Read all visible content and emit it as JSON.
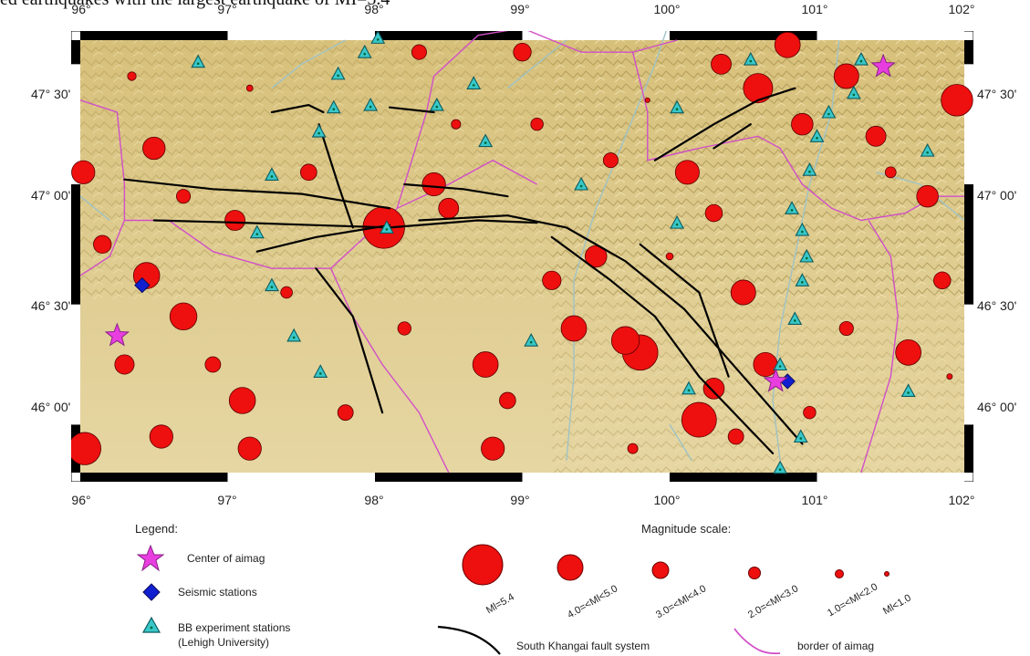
{
  "top_note": "ed earthquakes with the largest earthquake of MI=5.4",
  "map": {
    "lon_ticks": [
      "96°",
      "97°",
      "98°",
      "99°",
      "100°",
      "101°",
      "102°"
    ],
    "lat_ticks": [
      "47° 30'",
      "47° 00'",
      "46° 30'",
      "46° 00'"
    ],
    "lon_range": [
      96,
      102
    ],
    "lat_range": [
      45.8,
      47.6
    ],
    "colors": {
      "terrain": "#d9c483",
      "earthquake": "#ee0f0f",
      "fault": "#000000",
      "aimag_border": "#d14fc8",
      "river": "#9fc3c6",
      "station_bb": "#38c7c9",
      "station_seismic": "#1020d0",
      "aimag_center": "#e83ee0"
    },
    "aimag_centers": [
      {
        "lon": 96.25,
        "lat": 46.37
      },
      {
        "lon": 100.72,
        "lat": 46.18
      },
      {
        "lon": 101.45,
        "lat": 47.49
      }
    ],
    "seismic_stations": [
      {
        "lon": 96.42,
        "lat": 46.58
      },
      {
        "lon": 100.8,
        "lat": 46.18
      }
    ],
    "bb_stations": [
      {
        "lon": 96.8,
        "lat": 47.51
      },
      {
        "lon": 97.75,
        "lat": 47.46
      },
      {
        "lon": 97.93,
        "lat": 47.55
      },
      {
        "lon": 98.02,
        "lat": 47.61
      },
      {
        "lon": 97.72,
        "lat": 47.32
      },
      {
        "lon": 97.97,
        "lat": 47.33
      },
      {
        "lon": 97.62,
        "lat": 47.22
      },
      {
        "lon": 98.42,
        "lat": 47.33
      },
      {
        "lon": 98.67,
        "lat": 47.42
      },
      {
        "lon": 98.75,
        "lat": 47.18
      },
      {
        "lon": 99.15,
        "lat": 47.68
      },
      {
        "lon": 97.3,
        "lat": 47.04
      },
      {
        "lon": 97.2,
        "lat": 46.8
      },
      {
        "lon": 98.08,
        "lat": 46.82
      },
      {
        "lon": 97.3,
        "lat": 46.58
      },
      {
        "lon": 97.45,
        "lat": 46.37
      },
      {
        "lon": 97.63,
        "lat": 46.22
      },
      {
        "lon": 99.06,
        "lat": 46.35
      },
      {
        "lon": 99.4,
        "lat": 47.0
      },
      {
        "lon": 100.05,
        "lat": 47.32
      },
      {
        "lon": 100.05,
        "lat": 46.84
      },
      {
        "lon": 100.55,
        "lat": 47.52
      },
      {
        "lon": 100.13,
        "lat": 46.15
      },
      {
        "lon": 100.75,
        "lat": 46.25
      },
      {
        "lon": 100.85,
        "lat": 46.44
      },
      {
        "lon": 100.9,
        "lat": 46.6
      },
      {
        "lon": 100.93,
        "lat": 46.7
      },
      {
        "lon": 100.9,
        "lat": 46.81
      },
      {
        "lon": 100.83,
        "lat": 46.9
      },
      {
        "lon": 100.95,
        "lat": 47.06
      },
      {
        "lon": 101.0,
        "lat": 47.2
      },
      {
        "lon": 101.08,
        "lat": 47.3
      },
      {
        "lon": 101.25,
        "lat": 47.38
      },
      {
        "lon": 101.3,
        "lat": 47.52
      },
      {
        "lon": 101.62,
        "lat": 46.14
      },
      {
        "lon": 101.75,
        "lat": 47.14
      },
      {
        "lon": 100.89,
        "lat": 45.95
      },
      {
        "lon": 100.75,
        "lat": 45.82
      }
    ],
    "faults": [
      [
        [
          96.3,
          47.02
        ],
        [
          96.9,
          46.98
        ],
        [
          97.5,
          46.96
        ],
        [
          98.1,
          46.9
        ]
      ],
      [
        [
          96.5,
          46.85
        ],
        [
          97.1,
          46.84
        ],
        [
          97.6,
          46.83
        ],
        [
          98.1,
          46.82
        ],
        [
          98.7,
          46.85
        ],
        [
          99.1,
          46.84
        ]
      ],
      [
        [
          97.2,
          46.72
        ],
        [
          97.6,
          46.78
        ],
        [
          98.1,
          46.83
        ]
      ],
      [
        [
          98.3,
          46.85
        ],
        [
          98.9,
          46.87
        ],
        [
          99.3,
          46.82
        ],
        [
          99.7,
          46.68
        ],
        [
          100.1,
          46.48
        ],
        [
          100.5,
          46.2
        ],
        [
          100.9,
          45.92
        ]
      ],
      [
        [
          99.2,
          46.78
        ],
        [
          99.6,
          46.6
        ],
        [
          99.9,
          46.45
        ],
        [
          100.2,
          46.2
        ],
        [
          100.7,
          45.88
        ]
      ],
      [
        [
          99.8,
          46.75
        ],
        [
          100.2,
          46.55
        ],
        [
          100.4,
          46.2
        ]
      ],
      [
        [
          97.62,
          47.25
        ],
        [
          97.75,
          47.0
        ],
        [
          97.85,
          46.82
        ]
      ],
      [
        [
          97.6,
          46.65
        ],
        [
          97.85,
          46.45
        ],
        [
          98.05,
          46.05
        ]
      ],
      [
        [
          97.3,
          47.3
        ],
        [
          97.55,
          47.33
        ],
        [
          97.65,
          47.3
        ]
      ],
      [
        [
          98.1,
          47.32
        ],
        [
          98.4,
          47.3
        ]
      ],
      [
        [
          99.9,
          47.1
        ],
        [
          100.3,
          47.25
        ],
        [
          100.6,
          47.35
        ],
        [
          100.85,
          47.4
        ]
      ],
      [
        [
          100.3,
          47.15
        ],
        [
          100.55,
          47.25
        ]
      ],
      [
        [
          98.2,
          47.0
        ],
        [
          98.6,
          46.98
        ],
        [
          98.9,
          46.95
        ]
      ]
    ],
    "borders": [
      [
        [
          96.0,
          47.35
        ],
        [
          96.25,
          47.3
        ],
        [
          96.3,
          47.0
        ],
        [
          96.3,
          46.85
        ],
        [
          96.6,
          46.85
        ],
        [
          96.9,
          46.72
        ],
        [
          97.3,
          46.65
        ],
        [
          97.7,
          46.65
        ],
        [
          98.0,
          46.82
        ],
        [
          98.15,
          46.9
        ],
        [
          98.5,
          47.0
        ]
      ],
      [
        [
          96.3,
          46.85
        ],
        [
          96.2,
          46.7
        ],
        [
          96.0,
          46.62
        ]
      ],
      [
        [
          97.7,
          46.65
        ],
        [
          97.85,
          46.45
        ],
        [
          98.05,
          46.25
        ],
        [
          98.3,
          46.05
        ],
        [
          98.5,
          45.8
        ]
      ],
      [
        [
          98.15,
          46.9
        ],
        [
          98.25,
          47.1
        ],
        [
          98.35,
          47.3
        ],
        [
          98.4,
          47.45
        ],
        [
          98.7,
          47.62
        ],
        [
          99.0,
          47.65
        ],
        [
          99.4,
          47.55
        ],
        [
          99.75,
          47.55
        ],
        [
          100.05,
          47.6
        ]
      ],
      [
        [
          99.75,
          47.55
        ],
        [
          99.85,
          47.3
        ],
        [
          99.85,
          47.1
        ],
        [
          100.2,
          47.15
        ],
        [
          100.6,
          47.2
        ],
        [
          100.75,
          47.15
        ],
        [
          100.9,
          47.0
        ],
        [
          101.1,
          46.9
        ],
        [
          101.3,
          46.85
        ],
        [
          101.6,
          46.88
        ],
        [
          101.8,
          46.95
        ],
        [
          102.0,
          46.95
        ]
      ],
      [
        [
          101.35,
          46.85
        ],
        [
          101.5,
          46.7
        ],
        [
          101.55,
          46.45
        ],
        [
          101.5,
          46.2
        ],
        [
          101.4,
          46.0
        ],
        [
          101.3,
          45.8
        ]
      ],
      [
        [
          98.5,
          47.0
        ],
        [
          98.8,
          47.1
        ],
        [
          99.1,
          47.0
        ]
      ],
      [
        [
          99.0,
          47.65
        ],
        [
          99.0,
          47.68
        ]
      ]
    ],
    "rivers": [
      [
        [
          99.3,
          45.85
        ],
        [
          99.35,
          46.2
        ],
        [
          99.35,
          46.6
        ],
        [
          99.5,
          46.9
        ],
        [
          99.7,
          47.2
        ],
        [
          99.9,
          47.5
        ],
        [
          100.0,
          47.68
        ]
      ],
      [
        [
          100.75,
          45.85
        ],
        [
          100.7,
          46.1
        ],
        [
          100.75,
          46.4
        ],
        [
          100.85,
          46.7
        ],
        [
          100.95,
          47.0
        ],
        [
          101.1,
          47.3
        ],
        [
          101.15,
          47.6
        ]
      ],
      [
        [
          97.3,
          47.4
        ],
        [
          97.5,
          47.5
        ],
        [
          97.8,
          47.6
        ]
      ],
      [
        [
          98.9,
          47.4
        ],
        [
          99.1,
          47.5
        ],
        [
          99.3,
          47.6
        ]
      ],
      [
        [
          101.4,
          47.05
        ],
        [
          101.7,
          47.0
        ],
        [
          102.0,
          46.85
        ]
      ],
      [
        [
          96.0,
          46.95
        ],
        [
          96.2,
          46.85
        ]
      ],
      [
        [
          100.0,
          46.0
        ],
        [
          100.15,
          45.85
        ]
      ]
    ],
    "earthquakes": [
      {
        "lon": 98.06,
        "lat": 46.82,
        "mag": 5.4
      },
      {
        "lon": 99.8,
        "lat": 46.3,
        "mag": 4.6
      },
      {
        "lon": 100.2,
        "lat": 46.02,
        "mag": 4.5
      },
      {
        "lon": 96.03,
        "lat": 45.9,
        "mag": 4.2
      },
      {
        "lon": 101.95,
        "lat": 47.35,
        "mag": 4.1
      },
      {
        "lon": 100.6,
        "lat": 47.4,
        "mag": 3.8
      },
      {
        "lon": 99.7,
        "lat": 46.35,
        "mag": 3.6
      },
      {
        "lon": 96.7,
        "lat": 46.45,
        "mag": 3.5
      },
      {
        "lon": 97.1,
        "lat": 46.1,
        "mag": 3.4
      },
      {
        "lon": 98.75,
        "lat": 46.25,
        "mag": 3.3
      },
      {
        "lon": 99.35,
        "lat": 46.4,
        "mag": 3.3
      },
      {
        "lon": 96.45,
        "lat": 46.62,
        "mag": 3.4
      },
      {
        "lon": 100.5,
        "lat": 46.55,
        "mag": 3.2
      },
      {
        "lon": 100.12,
        "lat": 47.05,
        "mag": 3.1
      },
      {
        "lon": 101.2,
        "lat": 47.45,
        "mag": 3.2
      },
      {
        "lon": 101.62,
        "lat": 46.3,
        "mag": 3.3
      },
      {
        "lon": 98.4,
        "lat": 47.0,
        "mag": 3.0
      },
      {
        "lon": 100.8,
        "lat": 47.58,
        "mag": 3.3
      },
      {
        "lon": 100.65,
        "lat": 46.25,
        "mag": 3.1
      },
      {
        "lon": 96.55,
        "lat": 45.95,
        "mag": 3.0
      },
      {
        "lon": 97.15,
        "lat": 45.9,
        "mag": 3.0
      },
      {
        "lon": 98.8,
        "lat": 45.9,
        "mag": 3.0
      },
      {
        "lon": 96.02,
        "lat": 47.05,
        "mag": 3.0
      },
      {
        "lon": 96.5,
        "lat": 47.15,
        "mag": 2.9
      },
      {
        "lon": 100.9,
        "lat": 47.25,
        "mag": 2.8
      },
      {
        "lon": 101.75,
        "lat": 46.95,
        "mag": 2.8
      },
      {
        "lon": 99.5,
        "lat": 46.7,
        "mag": 2.8
      },
      {
        "lon": 100.3,
        "lat": 46.15,
        "mag": 2.7
      },
      {
        "lon": 97.05,
        "lat": 46.85,
        "mag": 2.6
      },
      {
        "lon": 98.5,
        "lat": 46.9,
        "mag": 2.6
      },
      {
        "lon": 101.4,
        "lat": 47.2,
        "mag": 2.6
      },
      {
        "lon": 100.35,
        "lat": 47.5,
        "mag": 2.6
      },
      {
        "lon": 97.9,
        "lat": 47.68,
        "mag": 2.5
      },
      {
        "lon": 96.3,
        "lat": 46.25,
        "mag": 2.5
      },
      {
        "lon": 99.2,
        "lat": 46.6,
        "mag": 2.4
      },
      {
        "lon": 99.0,
        "lat": 47.55,
        "mag": 2.3
      },
      {
        "lon": 96.15,
        "lat": 46.75,
        "mag": 2.3
      },
      {
        "lon": 101.85,
        "lat": 46.6,
        "mag": 2.2
      },
      {
        "lon": 100.3,
        "lat": 46.88,
        "mag": 2.2
      },
      {
        "lon": 97.55,
        "lat": 47.05,
        "mag": 2.1
      },
      {
        "lon": 98.9,
        "lat": 46.1,
        "mag": 2.1
      },
      {
        "lon": 96.9,
        "lat": 46.25,
        "mag": 2.0
      },
      {
        "lon": 100.45,
        "lat": 45.95,
        "mag": 2.0
      },
      {
        "lon": 97.8,
        "lat": 46.05,
        "mag": 2.0
      },
      {
        "lon": 98.3,
        "lat": 47.55,
        "mag": 1.9
      },
      {
        "lon": 99.6,
        "lat": 47.1,
        "mag": 1.9
      },
      {
        "lon": 101.2,
        "lat": 46.4,
        "mag": 1.8
      },
      {
        "lon": 96.7,
        "lat": 46.95,
        "mag": 1.8
      },
      {
        "lon": 98.2,
        "lat": 46.4,
        "mag": 1.7
      },
      {
        "lon": 100.95,
        "lat": 46.05,
        "mag": 1.6
      },
      {
        "lon": 99.1,
        "lat": 47.25,
        "mag": 1.6
      },
      {
        "lon": 97.4,
        "lat": 46.55,
        "mag": 1.5
      },
      {
        "lon": 101.5,
        "lat": 47.05,
        "mag": 1.4
      },
      {
        "lon": 99.75,
        "lat": 45.9,
        "mag": 1.3
      },
      {
        "lon": 98.55,
        "lat": 47.25,
        "mag": 1.2
      },
      {
        "lon": 96.35,
        "lat": 47.45,
        "mag": 1.1
      },
      {
        "lon": 100.0,
        "lat": 46.7,
        "mag": 0.9
      },
      {
        "lon": 97.15,
        "lat": 47.4,
        "mag": 0.8
      },
      {
        "lon": 101.9,
        "lat": 46.2,
        "mag": 0.7
      },
      {
        "lon": 99.85,
        "lat": 47.35,
        "mag": 0.6
      }
    ]
  },
  "legend": {
    "title": "Legend:",
    "items": [
      {
        "label": "Center of aimag",
        "symbol": "magenta-star"
      },
      {
        "label": "Seismic stations",
        "symbol": "blue-diamond"
      },
      {
        "label": "BB experiment stations",
        "label2": "(Lehigh University)",
        "symbol": "cyan-triangle"
      },
      {
        "label": "South Khangai fault system",
        "symbol": "black-line"
      },
      {
        "label": "border of aimag",
        "symbol": "magenta-line"
      }
    ]
  },
  "magnitude_scale": {
    "title": "Magnitude scale:",
    "classes": [
      {
        "label": "Ml=5.4",
        "mag": 5.4
      },
      {
        "label": "4.0=<Ml<5.0",
        "mag": 4.5
      },
      {
        "label": "3.0=<Ml<4.0",
        "mag": 3.5
      },
      {
        "label": "2.0=<Ml<3.0",
        "mag": 2.5
      },
      {
        "label": "1.0=<Ml<2.0",
        "mag": 1.5
      },
      {
        "label": "Ml<1.0",
        "mag": 0.8
      }
    ]
  }
}
